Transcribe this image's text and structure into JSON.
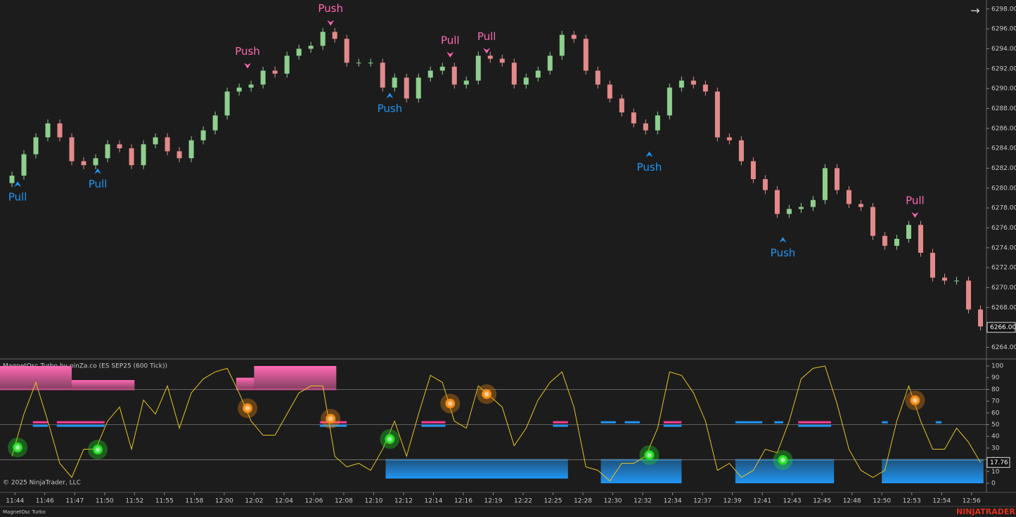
{
  "chart_data": [
    {
      "type": "candlestick",
      "name": "ES SEP25 (600 Tick)",
      "xlim": [
        0,
        330
      ],
      "ylim": [
        6262.9,
        6298.9
      ],
      "yticks": [
        {
          "value": 6264,
          "label": "6264.00"
        },
        {
          "value": 6266,
          "label": "6266.00"
        },
        {
          "value": 6268,
          "label": "6268.00"
        },
        {
          "value": 6270,
          "label": "6270.00"
        },
        {
          "value": 6272,
          "label": "6272.00"
        },
        {
          "value": 6274,
          "label": "6274.00"
        },
        {
          "value": 6276,
          "label": "6276.00"
        },
        {
          "value": 6278,
          "label": "6278.00"
        },
        {
          "value": 6280,
          "label": "6280.00"
        },
        {
          "value": 6282,
          "label": "6282.00"
        },
        {
          "value": 6284,
          "label": "6284.00"
        },
        {
          "value": 6286,
          "label": "6286.00"
        },
        {
          "value": 6288,
          "label": "6288.00"
        },
        {
          "value": 6290,
          "label": "6290.00"
        },
        {
          "value": 6292,
          "label": "6292.00"
        },
        {
          "value": 6294,
          "label": "6294.00"
        },
        {
          "value": 6296,
          "label": "6296.00"
        },
        {
          "value": 6298,
          "label": "6298.00"
        }
      ],
      "up_color": "#8fcf8f",
      "down_color": "#e48a8a",
      "x": [
        4,
        8,
        12,
        16,
        20,
        24,
        28,
        32,
        36,
        40,
        44,
        48,
        52,
        56,
        60,
        64,
        68,
        72,
        76,
        80,
        84,
        88,
        92,
        96,
        100,
        104,
        108,
        112,
        116,
        120,
        124,
        128,
        132,
        136,
        140,
        144,
        148,
        152,
        156,
        160,
        164,
        168,
        172,
        176,
        180,
        184,
        188,
        192,
        196,
        200,
        204,
        208,
        212,
        216,
        220,
        224,
        228,
        232,
        236,
        240,
        244,
        248,
        252,
        256,
        260,
        264,
        268,
        272,
        276,
        280,
        284,
        288,
        292,
        296,
        300,
        304,
        308,
        312,
        316,
        320,
        324,
        328
      ],
      "open": [
        6280.5,
        6281.25,
        6283.4,
        6285.1,
        6286.5,
        6285.1,
        6282.7,
        6282.3,
        6283,
        6284.4,
        6284,
        6282.3,
        6284.4,
        6285.1,
        6283.7,
        6283,
        6284.8,
        6285.8,
        6287.3,
        6289.7,
        6290.1,
        6290.4,
        6291.8,
        6291.5,
        6293.3,
        6294,
        6294.3,
        6295.7,
        6295,
        6292.6,
        6292.6,
        6292.6,
        6290.1,
        6291.1,
        6289,
        6291.1,
        6291.8,
        6292.2,
        6290.4,
        6290.8,
        6293.3,
        6293,
        6292.6,
        6290.4,
        6291.1,
        6291.8,
        6293.3,
        6295.4,
        6295,
        6291.8,
        6290.4,
        6289,
        6287.6,
        6286.5,
        6285.8,
        6287.3,
        6290.1,
        6290.8,
        6290.4,
        6289.7,
        6285.1,
        6284.8,
        6282.7,
        6280.9,
        6279.8,
        6277.4,
        6277.9,
        6278.1,
        6278.8,
        6282,
        6279.8,
        6278.4,
        6278.1,
        6275.2,
        6274.2,
        6274.9,
        6276.3,
        6273.5,
        6271,
        6270.7,
        6270.7,
        6267.8
      ],
      "high": [
        6281.65,
        6283.8,
        6285.5,
        6286.9,
        6286.9,
        6285.5,
        6283.1,
        6283.4,
        6284.8,
        6284.8,
        6284.4,
        6284.8,
        6285.5,
        6285.5,
        6284.1,
        6285.2,
        6286.2,
        6287.7,
        6290.1,
        6290.5,
        6290.8,
        6292.2,
        6292.2,
        6293.7,
        6294.4,
        6294.7,
        6296.1,
        6296.1,
        6295.4,
        6293,
        6293,
        6293,
        6291.5,
        6291.5,
        6291.5,
        6292.2,
        6292.6,
        6292.6,
        6291.2,
        6293.7,
        6293.7,
        6293.4,
        6293,
        6291.5,
        6292.2,
        6293.7,
        6295.8,
        6295.8,
        6295.4,
        6292.2,
        6290.8,
        6289.4,
        6288,
        6286.9,
        6287.7,
        6290.5,
        6291.2,
        6291.2,
        6290.8,
        6290.1,
        6285.5,
        6285.2,
        6283.1,
        6281.3,
        6280.2,
        6278.3,
        6278.5,
        6279.2,
        6282.4,
        6282.4,
        6280.2,
        6278.8,
        6278.5,
        6275.6,
        6275.3,
        6276.7,
        6276.7,
        6273.9,
        6271.4,
        6271.1,
        6271.1,
        6268.2
      ],
      "low": [
        6280.1,
        6280.85,
        6283,
        6284.7,
        6284.7,
        6282.3,
        6281.9,
        6281.9,
        6282.6,
        6283.6,
        6281.9,
        6281.9,
        6284,
        6283.3,
        6282.6,
        6282.6,
        6284.4,
        6285.4,
        6286.9,
        6289.3,
        6289.7,
        6290,
        6291.1,
        6291.1,
        6292.9,
        6293.6,
        6293.9,
        6294.6,
        6292.2,
        6292.2,
        6292.2,
        6289.7,
        6289.7,
        6288.6,
        6288.6,
        6290.7,
        6291.4,
        6290,
        6290,
        6290.4,
        6292.6,
        6292.2,
        6290,
        6290,
        6290.7,
        6291.4,
        6292.9,
        6294.6,
        6291.4,
        6290,
        6288.6,
        6287.2,
        6286.1,
        6285.4,
        6285.4,
        6286.9,
        6289.7,
        6290,
        6289.3,
        6284.7,
        6284.4,
        6282.3,
        6280.5,
        6279.4,
        6277,
        6277,
        6277.5,
        6277.7,
        6278.4,
        6279.4,
        6278,
        6277.7,
        6274.8,
        6273.8,
        6273.8,
        6274.5,
        6273.1,
        6270.6,
        6270.3,
        6270.3,
        6267.4,
        6265.7
      ],
      "close": [
        6281.25,
        6283.4,
        6285.1,
        6286.5,
        6285.1,
        6282.7,
        6282.3,
        6283,
        6284.4,
        6284,
        6282.3,
        6284.4,
        6285.1,
        6283.7,
        6283,
        6284.8,
        6285.8,
        6287.3,
        6289.7,
        6290.1,
        6290.4,
        6291.8,
        6291.5,
        6293.3,
        6294,
        6294.3,
        6295.7,
        6295,
        6292.6,
        6292.6,
        6292.6,
        6290.1,
        6291.1,
        6289,
        6291.1,
        6291.8,
        6292.2,
        6290.4,
        6290.8,
        6293.3,
        6293,
        6292.6,
        6290.4,
        6291.1,
        6291.8,
        6293.3,
        6295.4,
        6295,
        6291.8,
        6290.4,
        6289,
        6287.6,
        6286.5,
        6285.8,
        6287.3,
        6290.1,
        6290.8,
        6290.4,
        6289.7,
        6285.1,
        6284.8,
        6282.7,
        6280.9,
        6279.8,
        6277.4,
        6277.9,
        6278.1,
        6278.8,
        6282,
        6279.8,
        6278.4,
        6278.1,
        6275.2,
        6274.2,
        6274.9,
        6276.3,
        6273.5,
        6271,
        6270.7,
        6270.7,
        6267.8,
        6266.1
      ],
      "last_price": {
        "value": 6266,
        "label": "6266.00"
      },
      "annotations": [
        {
          "text": "Pull",
          "x": 5.9,
          "y": 6280.4,
          "position": "below",
          "color": "#2196f3"
        },
        {
          "text": "Pull",
          "x": 32.7,
          "y": 6281.7,
          "position": "below",
          "color": "#2196f3"
        },
        {
          "text": "Push",
          "x": 82.8,
          "y": 6292.3,
          "position": "above",
          "color": "#ff69b4"
        },
        {
          "text": "Push",
          "x": 110.6,
          "y": 6296.6,
          "position": "above",
          "color": "#ff69b4"
        },
        {
          "text": "Push",
          "x": 130.4,
          "y": 6289.3,
          "position": "below",
          "color": "#2196f3"
        },
        {
          "text": "Pull",
          "x": 150.6,
          "y": 6293.4,
          "position": "above",
          "color": "#ff69b4"
        },
        {
          "text": "Pull",
          "x": 162.8,
          "y": 6293.8,
          "position": "above",
          "color": "#ff69b4"
        },
        {
          "text": "Push",
          "x": 217.2,
          "y": 6283.4,
          "position": "below",
          "color": "#2196f3"
        },
        {
          "text": "Push",
          "x": 261.9,
          "y": 6274.8,
          "position": "below",
          "color": "#2196f3"
        },
        {
          "text": "Pull",
          "x": 306.1,
          "y": 6277.3,
          "position": "above",
          "color": "#ff69b4"
        }
      ]
    },
    {
      "type": "line",
      "title": "MagnetOsc Turbo by ninZa.co (ES SEP25 (600 Tick))",
      "footer_label": "MagnetOsc Turbo",
      "xlim": [
        0,
        330
      ],
      "ylim": [
        -7.2,
        105.4
      ],
      "yticks": [
        0,
        10,
        20,
        30,
        40,
        50,
        60,
        70,
        80,
        90,
        100
      ],
      "levels": [
        80,
        50,
        20
      ],
      "xticks": [
        {
          "value": 5,
          "label": "11:44"
        },
        {
          "value": 15,
          "label": "11:46"
        },
        {
          "value": 25,
          "label": "11:47"
        },
        {
          "value": 35,
          "label": "11:50"
        },
        {
          "value": 45,
          "label": "11:52"
        },
        {
          "value": 55,
          "label": "11:55"
        },
        {
          "value": 65,
          "label": "11:58"
        },
        {
          "value": 75,
          "label": "12:00"
        },
        {
          "value": 85,
          "label": "12:02"
        },
        {
          "value": 95,
          "label": "12:04"
        },
        {
          "value": 105,
          "label": "12:06"
        },
        {
          "value": 115,
          "label": "12:08"
        },
        {
          "value": 125,
          "label": "12:10"
        },
        {
          "value": 135,
          "label": "12:12"
        },
        {
          "value": 145,
          "label": "12:14"
        },
        {
          "value": 155,
          "label": "12:16"
        },
        {
          "value": 165,
          "label": "12:19"
        },
        {
          "value": 175,
          "label": "12:22"
        },
        {
          "value": 185,
          "label": "12:25"
        },
        {
          "value": 195,
          "label": "12:28"
        },
        {
          "value": 205,
          "label": "12:30"
        },
        {
          "value": 215,
          "label": "12:32"
        },
        {
          "value": 225,
          "label": "12:34"
        },
        {
          "value": 235,
          "label": "12:37"
        },
        {
          "value": 245,
          "label": "12:39"
        },
        {
          "value": 255,
          "label": "12:41"
        },
        {
          "value": 265,
          "label": "12:43"
        },
        {
          "value": 275,
          "label": "12:45"
        },
        {
          "value": 285,
          "label": "12:48"
        },
        {
          "value": 295,
          "label": "12:50"
        },
        {
          "value": 305,
          "label": "12:53"
        },
        {
          "value": 315,
          "label": "12:54"
        },
        {
          "value": 325,
          "label": "12:56"
        }
      ],
      "x": [
        4,
        8,
        12,
        16,
        20,
        24,
        28,
        32,
        36,
        40,
        44,
        48,
        52,
        56,
        60,
        64,
        68,
        72,
        76,
        80,
        84,
        88,
        92,
        96,
        100,
        104,
        108,
        112,
        116,
        120,
        124,
        128,
        132,
        136,
        140,
        144,
        148,
        152,
        156,
        160,
        164,
        168,
        172,
        176,
        180,
        184,
        188,
        192,
        196,
        200,
        204,
        208,
        212,
        216,
        220,
        224,
        228,
        232,
        236,
        240,
        244,
        248,
        252,
        256,
        260,
        264,
        268,
        272,
        276,
        280,
        284,
        288,
        292,
        296,
        300,
        304,
        308,
        312,
        316,
        320,
        324,
        328
      ],
      "series": [
        {
          "name": "MagnetOsc",
          "color": "#e6c229",
          "values": [
            23,
            59,
            86,
            53,
            17,
            5,
            29,
            29,
            53,
            65,
            29,
            71,
            59,
            83,
            47,
            77,
            89,
            95,
            98,
            77,
            53,
            41,
            41,
            59,
            77,
            83,
            83,
            23,
            14,
            17,
            11,
            29,
            53,
            23,
            59,
            92,
            86,
            53,
            47,
            83,
            74,
            65,
            32,
            47,
            71,
            86,
            95,
            65,
            14,
            11,
            2,
            17,
            17,
            23,
            47,
            95,
            92,
            77,
            53,
            11,
            17,
            5,
            11,
            29,
            26,
            53,
            89,
            98,
            100,
            68,
            29,
            11,
            5,
            11,
            53,
            83,
            53,
            29,
            29,
            47,
            35,
            17.76
          ]
        }
      ],
      "zones": [
        {
          "from": 0,
          "to": 24,
          "top": 100,
          "bottom": 80,
          "color": "#ff69b4"
        },
        {
          "from": 24,
          "to": 45,
          "top": 88,
          "bottom": 80,
          "color": "#ff69b4"
        },
        {
          "from": 79,
          "to": 85,
          "top": 90,
          "bottom": 80,
          "color": "#ff69b4"
        },
        {
          "from": 85,
          "to": 112.5,
          "top": 100,
          "bottom": 80,
          "color": "#ff69b4"
        },
        {
          "from": 129,
          "to": 190,
          "top": 20,
          "bottom": 4,
          "color": "#2196f3"
        },
        {
          "from": 201,
          "to": 228,
          "top": 20,
          "bottom": 0,
          "color": "#2196f3"
        },
        {
          "from": 246,
          "to": 279,
          "top": 20,
          "bottom": 0,
          "color": "#2196f3"
        },
        {
          "from": 295,
          "to": 329,
          "top": 20,
          "bottom": 0,
          "color": "#2196f3"
        }
      ],
      "state_marks": [
        {
          "from": 11,
          "to": 16,
          "y": 52,
          "color": "#ff3d9a"
        },
        {
          "from": 11,
          "to": 16,
          "y": 49,
          "color": "#2196f3"
        },
        {
          "from": 19,
          "to": 35,
          "y": 52,
          "color": "#ff3d9a"
        },
        {
          "from": 19,
          "to": 35,
          "y": 49,
          "color": "#2196f3"
        },
        {
          "from": 107,
          "to": 116,
          "y": 52,
          "color": "#ff3d9a"
        },
        {
          "from": 107,
          "to": 116,
          "y": 49,
          "color": "#2196f3"
        },
        {
          "from": 141,
          "to": 149,
          "y": 52,
          "color": "#ff3d9a"
        },
        {
          "from": 141,
          "to": 149,
          "y": 49,
          "color": "#2196f3"
        },
        {
          "from": 185,
          "to": 190,
          "y": 52,
          "color": "#ff3d9a"
        },
        {
          "from": 185,
          "to": 190,
          "y": 49,
          "color": "#2196f3"
        },
        {
          "from": 201,
          "to": 206,
          "y": 52,
          "color": "#2196f3"
        },
        {
          "from": 209,
          "to": 214,
          "y": 52,
          "color": "#2196f3"
        },
        {
          "from": 222,
          "to": 228,
          "y": 52,
          "color": "#ff3d9a"
        },
        {
          "from": 222,
          "to": 228,
          "y": 49,
          "color": "#2196f3"
        },
        {
          "from": 246,
          "to": 255,
          "y": 52,
          "color": "#2196f3"
        },
        {
          "from": 259,
          "to": 262,
          "y": 52,
          "color": "#2196f3"
        },
        {
          "from": 267,
          "to": 278,
          "y": 52,
          "color": "#ff3d9a"
        },
        {
          "from": 267,
          "to": 278,
          "y": 49,
          "color": "#2196f3"
        },
        {
          "from": 295,
          "to": 297,
          "y": 52,
          "color": "#2196f3"
        },
        {
          "from": 313,
          "to": 315,
          "y": 52,
          "color": "#2196f3"
        }
      ],
      "signals": [
        {
          "x": 5.9,
          "y": 30.5,
          "color": "#22dd22"
        },
        {
          "x": 32.7,
          "y": 28.7,
          "color": "#22dd22"
        },
        {
          "x": 130.4,
          "y": 37.7,
          "color": "#22dd22"
        },
        {
          "x": 217.2,
          "y": 24,
          "color": "#22dd22"
        },
        {
          "x": 261.9,
          "y": 19.8,
          "color": "#22dd22"
        },
        {
          "x": 82.8,
          "y": 64,
          "color": "#f08a10"
        },
        {
          "x": 110.6,
          "y": 55,
          "color": "#f08a10"
        },
        {
          "x": 150.6,
          "y": 68,
          "color": "#f08a10"
        },
        {
          "x": 162.8,
          "y": 76,
          "color": "#f08a10"
        },
        {
          "x": 306.1,
          "y": 70.7,
          "color": "#f08a10"
        }
      ]
    }
  ],
  "copyright": "© 2025 NinjaTrader, LLC",
  "brand": {
    "left": "NINJA",
    "right": "TRADER"
  }
}
